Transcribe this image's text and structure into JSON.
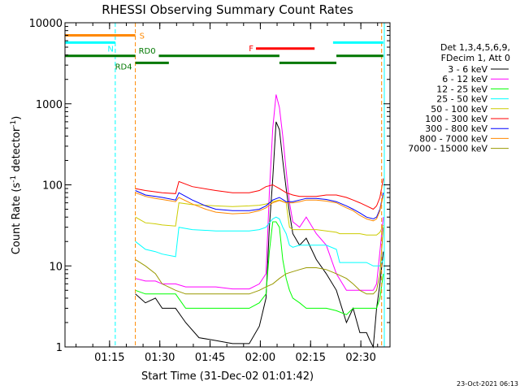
{
  "chart_data": {
    "type": "line",
    "title": "RHESSI Observing Summary Count Rates",
    "xlabel": "Start Time (31-Dec-02 01:01:42)",
    "ylabel": "Count Rate (s⁻¹ detector⁻¹)",
    "ylabel_parts": {
      "pre": "Count Rate (s",
      "sup1": "-1",
      "mid": " detector",
      "sup2": "-1",
      "post": ")"
    },
    "yscale": "log",
    "ylim": [
      1,
      10000
    ],
    "xlim_minutes": [
      0,
      97
    ],
    "ytick_labels": [
      "1",
      "10",
      "100",
      "1000",
      "10000"
    ],
    "xtick_labels": [
      "01:15",
      "01:30",
      "01:45",
      "02:00",
      "02:15",
      "02:30"
    ],
    "xtick_minutes": [
      13.3,
      28.3,
      43.3,
      58.3,
      73.3,
      88.3
    ],
    "legend_header": [
      "Det 1,3,4,5,6,9,",
      "FDecim 1, Att 0"
    ],
    "timestamp": "23-Oct-2021 06:13",
    "series": [
      {
        "name": "3 - 6 keV",
        "color": "#000000",
        "x": [
          21,
          24,
          27,
          29,
          33,
          36,
          40,
          45,
          50,
          55,
          58,
          60,
          61,
          62,
          63,
          64,
          65,
          66,
          67,
          68,
          70,
          72,
          75,
          78,
          81,
          84,
          86,
          88,
          90,
          91,
          92,
          93,
          94,
          95
        ],
        "y": [
          4.5,
          3.5,
          4,
          3,
          3,
          2,
          1.3,
          1.2,
          1.1,
          1.1,
          1.8,
          4,
          30,
          120,
          600,
          480,
          200,
          90,
          45,
          25,
          18,
          22,
          12,
          8,
          5,
          2,
          3,
          1.5,
          1.5,
          1.2,
          1,
          3,
          6,
          15
        ]
      },
      {
        "name": "6 - 12 keV",
        "color": "#ff00ff",
        "x": [
          21,
          24,
          27,
          29,
          33,
          36,
          40,
          45,
          50,
          55,
          58,
          60,
          61,
          62,
          63,
          64,
          65,
          66,
          67,
          68,
          70,
          72,
          75,
          78,
          81,
          84,
          86,
          88,
          90,
          91,
          92,
          93,
          94,
          95
        ],
        "y": [
          7,
          6.5,
          6.5,
          6,
          6,
          5.5,
          5.5,
          5.5,
          5.2,
          5.2,
          6,
          8,
          80,
          500,
          1300,
          900,
          400,
          150,
          60,
          35,
          30,
          40,
          25,
          18,
          8,
          5,
          5,
          5,
          5,
          5,
          5,
          6,
          15,
          40
        ]
      },
      {
        "name": "12 - 25 keV",
        "color": "#00ff00",
        "x": [
          21,
          24,
          27,
          29,
          33,
          36,
          40,
          45,
          50,
          55,
          58,
          60,
          61,
          62,
          63,
          64,
          65,
          66,
          67,
          68,
          70,
          72,
          75,
          78,
          81,
          84,
          86,
          88,
          90,
          91,
          92,
          93,
          94,
          95
        ],
        "y": [
          5,
          4.5,
          4.5,
          4.5,
          4.5,
          3,
          3,
          3,
          3,
          3,
          3.5,
          4.5,
          15,
          35,
          35,
          30,
          12,
          7,
          5,
          4,
          3.5,
          3,
          3,
          3,
          2.8,
          2.5,
          3,
          3,
          3,
          3,
          3,
          3,
          4,
          8
        ]
      },
      {
        "name": "25 - 50 keV",
        "color": "#00ffff",
        "x": [
          21,
          24,
          27,
          29,
          33,
          34,
          38,
          45,
          50,
          55,
          58,
          60,
          61,
          62,
          63,
          64,
          65,
          66,
          67,
          68,
          70,
          72,
          75,
          78,
          81,
          82,
          84,
          88,
          90,
          92,
          93,
          94,
          95
        ],
        "y": [
          20,
          16,
          15,
          14,
          13,
          30,
          28,
          27,
          27,
          27,
          28,
          30,
          34,
          38,
          40,
          38,
          30,
          25,
          18,
          17,
          18,
          18,
          18,
          18,
          16,
          11,
          11,
          11,
          11,
          10,
          10,
          10,
          12
        ]
      },
      {
        "name": "50 - 100 keV",
        "color": "#cccc00",
        "x": [
          21,
          24,
          27,
          29,
          33,
          34,
          38,
          45,
          50,
          55,
          58,
          60,
          62,
          64,
          66,
          67,
          68,
          70,
          72,
          75,
          78,
          81,
          82,
          84,
          88,
          90,
          92,
          93,
          94,
          95
        ],
        "y": [
          40,
          34,
          33,
          32,
          31,
          60,
          57,
          55,
          54,
          55,
          56,
          58,
          62,
          65,
          60,
          30,
          28,
          28,
          28,
          28,
          27,
          26,
          25,
          25,
          25,
          24,
          24,
          24,
          26,
          32
        ]
      },
      {
        "name": "100 - 300 keV",
        "color": "#ff0000",
        "x": [
          21,
          24,
          27,
          29,
          33,
          34,
          38,
          45,
          50,
          55,
          58,
          60,
          62,
          64,
          66,
          68,
          70,
          72,
          75,
          78,
          81,
          84,
          86,
          88,
          90,
          92,
          93,
          94,
          95
        ],
        "y": [
          90,
          85,
          82,
          80,
          78,
          110,
          95,
          85,
          80,
          80,
          85,
          95,
          100,
          90,
          80,
          75,
          72,
          72,
          72,
          75,
          75,
          70,
          65,
          60,
          55,
          50,
          55,
          70,
          120
        ]
      },
      {
        "name": "300 - 800 keV",
        "color": "#0000ff",
        "x": [
          21,
          24,
          27,
          29,
          33,
          34,
          38,
          42,
          45,
          50,
          55,
          58,
          60,
          62,
          64,
          66,
          68,
          70,
          72,
          75,
          78,
          81,
          84,
          86,
          88,
          90,
          92,
          93,
          94,
          95
        ],
        "y": [
          85,
          75,
          72,
          70,
          65,
          80,
          65,
          55,
          50,
          48,
          48,
          50,
          55,
          65,
          70,
          62,
          62,
          65,
          68,
          68,
          66,
          62,
          55,
          50,
          45,
          40,
          38,
          40,
          50,
          80
        ]
      },
      {
        "name": "800 - 7000 keV",
        "color": "#ff8800",
        "x": [
          21,
          24,
          27,
          29,
          33,
          34,
          38,
          42,
          45,
          50,
          55,
          58,
          60,
          62,
          64,
          66,
          68,
          70,
          72,
          75,
          78,
          81,
          84,
          86,
          88,
          90,
          92,
          93,
          94,
          95
        ],
        "y": [
          80,
          72,
          68,
          66,
          62,
          70,
          58,
          50,
          46,
          44,
          45,
          48,
          52,
          60,
          64,
          60,
          60,
          62,
          65,
          65,
          63,
          60,
          52,
          48,
          42,
          38,
          36,
          38,
          48,
          75
        ]
      },
      {
        "name": "7000 - 15000 keV",
        "color": "#999900",
        "x": [
          21,
          24,
          27,
          29,
          33,
          36,
          40,
          45,
          50,
          55,
          58,
          60,
          62,
          64,
          66,
          68,
          70,
          72,
          75,
          78,
          81,
          84,
          86,
          88,
          90,
          92,
          93,
          94,
          95
        ],
        "y": [
          12,
          10,
          8,
          6,
          5,
          4.5,
          4.5,
          4.5,
          4.5,
          4.5,
          5,
          5.5,
          6,
          7,
          8,
          8.5,
          9,
          9.5,
          9.5,
          9,
          8,
          7,
          6,
          5,
          4.5,
          4.5,
          5,
          8,
          30
        ]
      }
    ],
    "state_bars": [
      {
        "label": "S",
        "color": "#ff8800",
        "level": 7000,
        "segments": [
          [
            0,
            21
          ]
        ]
      },
      {
        "label": "N",
        "color": "#00ffff",
        "level": 5700,
        "segments": [
          [
            0,
            15
          ],
          [
            80,
            95
          ]
        ]
      },
      {
        "label": "F",
        "color": "#ff0000",
        "level": 4800,
        "segments": [
          [
            57,
            74.5
          ]
        ]
      },
      {
        "label": "RD0",
        "color": "#007700",
        "level": 3900,
        "segments": [
          [
            0,
            21
          ],
          [
            28,
            64
          ],
          [
            81,
            95
          ]
        ]
      },
      {
        "label": "RD4",
        "color": "#007700",
        "level": 3200,
        "segments": [
          [
            21,
            31
          ],
          [
            64,
            81
          ]
        ]
      }
    ],
    "vertical_lines": [
      {
        "minute": 15,
        "color": "#00ffff",
        "style": "dashed"
      },
      {
        "minute": 21,
        "color": "#ff8800",
        "style": "dashed"
      },
      {
        "minute": 94.5,
        "color": "#ff8800",
        "style": "dashed"
      },
      {
        "minute": 0,
        "color": "#00ffff",
        "style": "solid"
      },
      {
        "minute": 95.3,
        "color": "#00ffff",
        "style": "solid"
      }
    ]
  }
}
